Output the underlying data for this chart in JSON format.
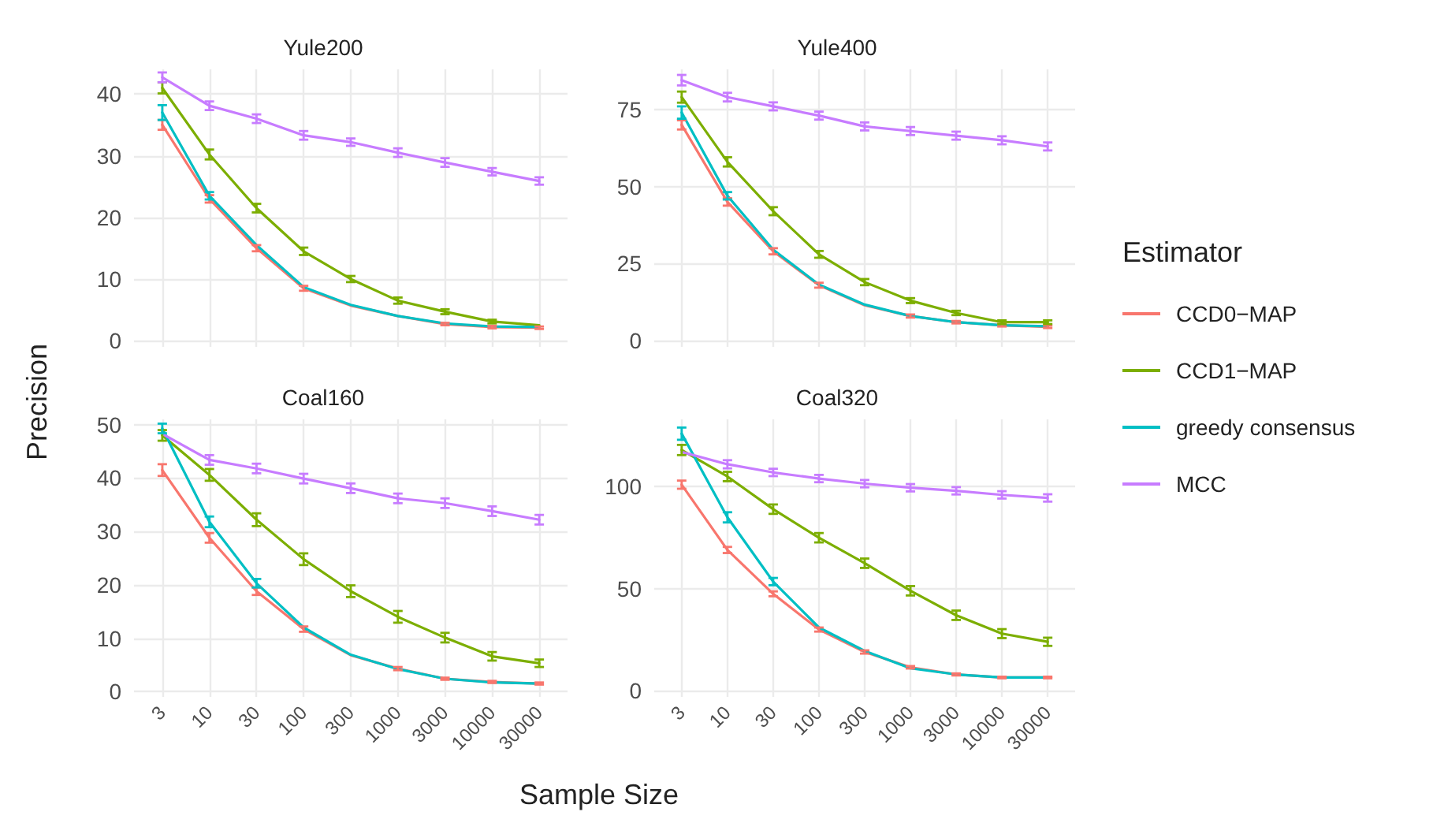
{
  "chart_data": [
    {
      "type": "line",
      "title": "Yule200",
      "ylabel": "Precision",
      "categories": [
        "3",
        "10",
        "30",
        "100",
        "300",
        "1000",
        "3000",
        "10000",
        "30000"
      ],
      "ylim": [
        -1,
        44
      ],
      "yticks": [
        0,
        10,
        20,
        30,
        40
      ],
      "grid": true,
      "tick_labels": "y",
      "legend": "right",
      "legend_title": "Estimator",
      "marker": "none",
      "series": [
        {
          "name": "CCD0−MAP",
          "color": "#f8766d",
          "values": [
            35,
            23,
            15,
            8.5,
            5.7,
            4,
            2.7,
            2.2,
            2.1
          ],
          "errors": [
            0.8,
            0.6,
            0.5,
            0.4,
            null,
            null,
            0.2,
            0.2,
            0.2
          ]
        },
        {
          "name": "CCD1−MAP",
          "color": "#7cae00",
          "values": [
            41,
            30.2,
            21.5,
            14.5,
            10,
            6.5,
            4.7,
            3.1,
            2.5
          ],
          "errors": [
            0.9,
            0.8,
            0.7,
            0.6,
            0.5,
            0.5,
            0.4,
            0.3,
            null
          ]
        },
        {
          "name": "greedy consensus",
          "color": "#00bfc4",
          "values": [
            37,
            23.5,
            15.5,
            8.7,
            5.8,
            4,
            2.8,
            2.3,
            2.2
          ],
          "errors": [
            1.2,
            0.6,
            null,
            null,
            null,
            null,
            null,
            null,
            null
          ]
        },
        {
          "name": "MCC",
          "color": "#c77cff",
          "values": [
            42.7,
            38.1,
            36,
            33.3,
            32.2,
            30.5,
            28.9,
            27.4,
            25.9
          ],
          "errors": [
            0.8,
            0.7,
            0.7,
            0.7,
            0.6,
            0.7,
            0.7,
            0.6,
            0.6
          ]
        }
      ]
    },
    {
      "type": "line",
      "title": "Yule400",
      "categories": [
        "3",
        "10",
        "30",
        "100",
        "300",
        "1000",
        "3000",
        "10000",
        "30000"
      ],
      "ylim": [
        -2,
        88
      ],
      "yticks": [
        0,
        25,
        50,
        75
      ],
      "grid": true,
      "tick_labels": "y",
      "marker": "none",
      "series": [
        {
          "color": "#f8766d",
          "values": [
            70,
            45,
            29,
            18,
            11.5,
            8,
            6,
            5,
            4.5
          ],
          "errors": [
            1.5,
            1.2,
            1,
            0.8,
            null,
            0.5,
            0.4,
            0.4,
            0.4
          ]
        },
        {
          "color": "#7cae00",
          "values": [
            79,
            58,
            42,
            28,
            19,
            13,
            9,
            6,
            6
          ],
          "errors": [
            1.8,
            1.5,
            1.3,
            1.1,
            1,
            0.8,
            0.7,
            0.6,
            0.6
          ]
        },
        {
          "color": "#00bfc4",
          "values": [
            74,
            47,
            29.5,
            18.2,
            11.7,
            8,
            6,
            5,
            4.7
          ],
          "errors": [
            2,
            1.2,
            null,
            null,
            null,
            null,
            null,
            null,
            null
          ]
        },
        {
          "color": "#c77cff",
          "values": [
            84.5,
            79,
            76,
            73,
            69.5,
            68,
            66.5,
            65,
            63
          ],
          "errors": [
            1.7,
            1.4,
            1.3,
            1.3,
            1.3,
            1.3,
            1.3,
            1.3,
            1.3
          ]
        }
      ]
    },
    {
      "type": "line",
      "title": "Coal160",
      "xlabel": "Sample Size",
      "categories": [
        "3",
        "10",
        "30",
        "100",
        "300",
        "1000",
        "3000",
        "10000",
        "30000"
      ],
      "ylim": [
        -1,
        51
      ],
      "yticks": [
        0,
        10,
        20,
        30,
        40,
        50
      ],
      "grid": true,
      "marker": "none",
      "series": [
        {
          "color": "#f8766d",
          "values": [
            41.5,
            28.8,
            18.8,
            11.7,
            6.8,
            4.3,
            2.4,
            1.8,
            1.5
          ],
          "errors": [
            1.1,
            0.9,
            0.7,
            0.5,
            null,
            0.3,
            0.2,
            0.2,
            0.2
          ]
        },
        {
          "color": "#7cae00",
          "values": [
            48,
            40.6,
            32.2,
            24.8,
            18.8,
            14,
            10.1,
            6.6,
            5.3
          ],
          "errors": [
            1,
            1.1,
            1.2,
            1.1,
            1.1,
            1.1,
            0.9,
            0.8,
            0.7
          ]
        },
        {
          "color": "#00bfc4",
          "values": [
            49.3,
            31.8,
            20.3,
            12,
            6.9,
            4.2,
            2.4,
            1.7,
            1.5
          ],
          "errors": [
            0.9,
            1,
            0.8,
            null,
            null,
            null,
            null,
            null,
            null
          ]
        },
        {
          "color": "#c77cff",
          "values": [
            48.3,
            43.4,
            41.8,
            39.9,
            38.1,
            36.2,
            35.3,
            33.8,
            32.2
          ],
          "errors": [
            null,
            0.9,
            0.9,
            0.9,
            0.9,
            0.9,
            0.9,
            0.9,
            0.9
          ]
        }
      ]
    },
    {
      "type": "line",
      "title": "Coal320",
      "categories": [
        "3",
        "10",
        "30",
        "100",
        "300",
        "1000",
        "3000",
        "10000",
        "30000"
      ],
      "ylim": [
        -3,
        133
      ],
      "yticks": [
        0,
        50,
        100
      ],
      "grid": true,
      "marker": "none",
      "series": [
        {
          "color": "#f8766d",
          "values": [
            101,
            69,
            47.5,
            30,
            19,
            11.5,
            8,
            6.5,
            6.5
          ],
          "errors": [
            2,
            1.5,
            1.2,
            1,
            0.8,
            0.6,
            0.5,
            0.4,
            0.4
          ]
        },
        {
          "color": "#7cae00",
          "values": [
            118,
            105,
            89,
            75,
            62.5,
            49,
            37,
            28,
            24
          ],
          "errors": [
            2.5,
            2.3,
            2.3,
            2.3,
            2.3,
            2.3,
            2.3,
            2.2,
            2
          ]
        },
        {
          "color": "#00bfc4",
          "values": [
            126,
            85,
            53.5,
            31,
            19.5,
            11,
            8,
            6.5,
            6.5
          ],
          "errors": [
            3,
            2.5,
            1.8,
            null,
            null,
            null,
            null,
            null,
            null
          ]
        },
        {
          "color": "#c77cff",
          "values": [
            117,
            111,
            107,
            104,
            101.5,
            99.5,
            98,
            96,
            94.5
          ],
          "errors": [
            null,
            2,
            1.8,
            1.8,
            1.8,
            1.8,
            1.8,
            1.8,
            1.8
          ]
        }
      ]
    }
  ]
}
